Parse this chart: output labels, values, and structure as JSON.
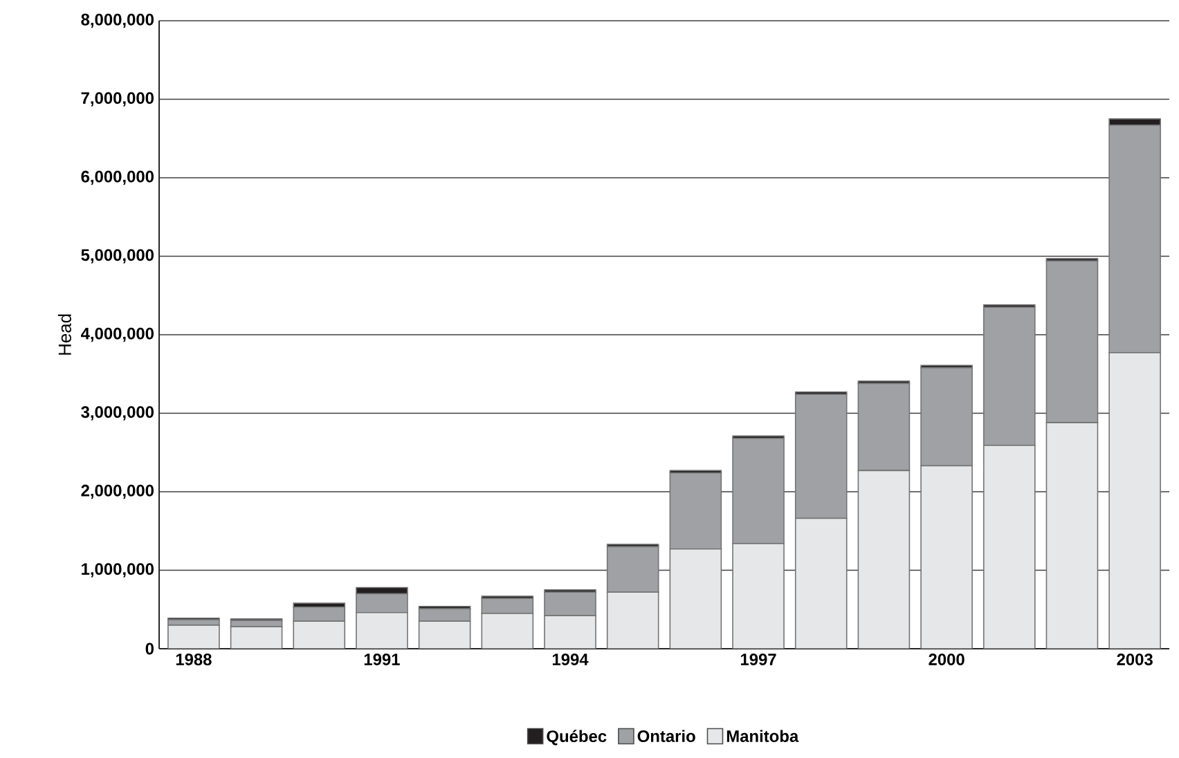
{
  "chart_data": {
    "type": "bar",
    "stacked": true,
    "ylabel": "Head",
    "categories": [
      "1988",
      null,
      null,
      "1991",
      null,
      null,
      "1994",
      null,
      null,
      "1997",
      null,
      null,
      "2000",
      null,
      null,
      "2003"
    ],
    "series": [
      {
        "name": "Manitoba",
        "color": "#e6e7e8",
        "values": [
          300000,
          280000,
          350000,
          460000,
          350000,
          450000,
          420000,
          720000,
          1270000,
          1340000,
          1660000,
          2270000,
          2330000,
          2590000,
          2880000,
          3770000
        ]
      },
      {
        "name": "Ontario",
        "color": "#a0a1a4",
        "values": [
          70000,
          80000,
          180000,
          240000,
          160000,
          190000,
          300000,
          580000,
          970000,
          1340000,
          1580000,
          1110000,
          1250000,
          1760000,
          2060000,
          2900000
        ]
      },
      {
        "name": "Québec",
        "color": "#231f20",
        "values": [
          20000,
          20000,
          50000,
          80000,
          30000,
          30000,
          30000,
          30000,
          30000,
          30000,
          30000,
          30000,
          30000,
          30000,
          30000,
          80000
        ]
      }
    ],
    "ylim": [
      0,
      8000000
    ],
    "yticks": [
      {
        "value": 0,
        "label": "0"
      },
      {
        "value": 1000000,
        "label": "1,000,000"
      },
      {
        "value": 2000000,
        "label": "2,000,000"
      },
      {
        "value": 3000000,
        "label": "3,000,000"
      },
      {
        "value": 4000000,
        "label": "4,000,000"
      },
      {
        "value": 5000000,
        "label": "5,000,000"
      },
      {
        "value": 6000000,
        "label": "6,000,000"
      },
      {
        "value": 7000000,
        "label": "7,000,000"
      },
      {
        "value": 8000000,
        "label": "8,000,000"
      }
    ],
    "grid": "y",
    "legend": "bottom"
  }
}
